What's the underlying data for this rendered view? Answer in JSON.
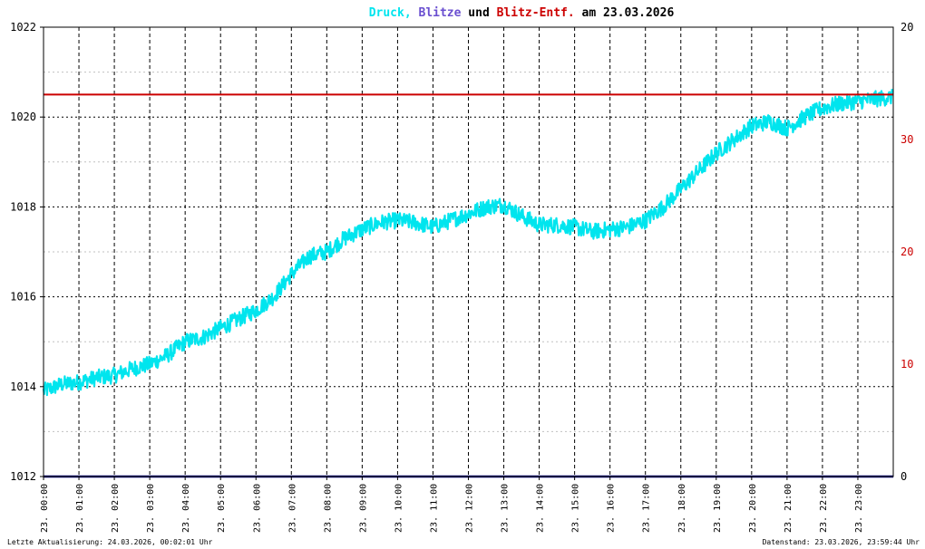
{
  "title": {
    "druck": "Druck",
    "sep": ",",
    "blitze": "Blitze",
    "und": "und",
    "entf": "Blitz-Entf.",
    "am": "am 23.03.2026"
  },
  "colors": {
    "druck": "#00e5ee",
    "blitze": "#6a4fd0",
    "entf": "#cc0000",
    "black": "#000000",
    "navy": "#000080",
    "bg": "#ffffff",
    "grid_light": "#c0c0c0"
  },
  "footer": {
    "left": "Letzte Aktualisierung: 24.03.2026, 00:02:01 Uhr",
    "right": "Datenstand: 23.03.2026, 23:59:44 Uhr"
  },
  "chart_data": {
    "type": "line",
    "x_tick_labels": [
      "23. 00:00",
      "23. 01:00",
      "23. 02:00",
      "23. 03:00",
      "23. 04:00",
      "23. 05:00",
      "23. 06:00",
      "23. 07:00",
      "23. 08:00",
      "23. 09:00",
      "23. 10:00",
      "23. 11:00",
      "23. 12:00",
      "23. 13:00",
      "23. 14:00",
      "23. 15:00",
      "23. 16:00",
      "23. 17:00",
      "23. 18:00",
      "23. 19:00",
      "23. 20:00",
      "23. 21:00",
      "23. 22:00",
      "23. 23:00"
    ],
    "xlim_hours": [
      0,
      24
    ],
    "y_left": {
      "ylim": [
        1012,
        1022
      ],
      "ticks": [
        1012,
        1014,
        1016,
        1018,
        1020,
        1022
      ]
    },
    "y_right_black": {
      "ylim": [
        0,
        20
      ],
      "ticks": [
        0,
        20
      ]
    },
    "y_right_red": {
      "ticks": [
        10,
        20,
        30
      ]
    },
    "series": [
      {
        "name": "Druck",
        "x_hours": [
          0.0,
          0.5,
          1.0,
          1.5,
          2.0,
          2.5,
          3.0,
          3.5,
          4.0,
          4.5,
          5.0,
          5.5,
          6.0,
          6.5,
          7.0,
          7.5,
          8.0,
          8.5,
          9.0,
          9.5,
          10.0,
          10.5,
          11.0,
          11.5,
          12.0,
          12.5,
          13.0,
          13.5,
          14.0,
          14.5,
          15.0,
          15.5,
          16.0,
          16.5,
          17.0,
          17.5,
          18.0,
          18.5,
          19.0,
          19.5,
          20.0,
          20.5,
          21.0,
          21.5,
          22.0,
          22.5,
          23.0,
          23.5,
          23.97
        ],
        "values": [
          1013.9,
          1014.05,
          1014.1,
          1014.2,
          1014.25,
          1014.4,
          1014.5,
          1014.7,
          1015.0,
          1015.1,
          1015.3,
          1015.5,
          1015.7,
          1016.0,
          1016.5,
          1016.9,
          1017.0,
          1017.3,
          1017.5,
          1017.65,
          1017.7,
          1017.65,
          1017.55,
          1017.7,
          1017.85,
          1018.0,
          1018.05,
          1017.8,
          1017.6,
          1017.6,
          1017.55,
          1017.45,
          1017.5,
          1017.55,
          1017.7,
          1018.0,
          1018.4,
          1018.8,
          1019.2,
          1019.5,
          1019.8,
          1019.9,
          1019.75,
          1020.0,
          1020.2,
          1020.3,
          1020.35,
          1020.4,
          1020.45
        ],
        "noise_amplitude": 0.18
      },
      {
        "name": "Blitz-Entf.",
        "constant": 1020.5,
        "x_range_hours": [
          0,
          24
        ]
      },
      {
        "name": "Blitze",
        "constant": 0,
        "x_range_hours": [
          0,
          24
        ]
      }
    ]
  }
}
